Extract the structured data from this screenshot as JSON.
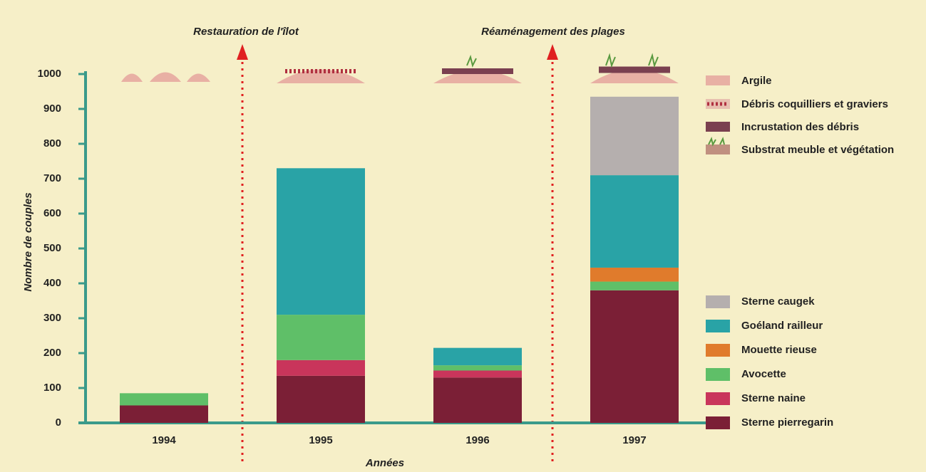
{
  "chart_data": {
    "type": "stacked_bar",
    "y_label": "Nombre de couples",
    "x_label": "Années",
    "annotations": [
      "Restauration de l'îlot",
      "Réaménagement des plages"
    ],
    "substrate_legend": [
      "Argile",
      "Débris coquilliers et graviers",
      "Incrustation des débris",
      "Substrat meuble et végétation"
    ],
    "categories": [
      "1994",
      "1995",
      "1996",
      "1997"
    ],
    "series": [
      {
        "name": "Sterne pierregarin",
        "color": "#7b1f36",
        "values": [
          50,
          135,
          130,
          380
        ]
      },
      {
        "name": "Sterne naine",
        "color": "#c9355b",
        "values": [
          0,
          45,
          20,
          0
        ]
      },
      {
        "name": "Avocette",
        "color": "#5fbf68",
        "values": [
          35,
          130,
          15,
          25
        ]
      },
      {
        "name": "Mouette rieuse",
        "color": "#e07b2c",
        "values": [
          0,
          0,
          0,
          40
        ]
      },
      {
        "name": "Goéland railleur",
        "color": "#29a3a6",
        "values": [
          0,
          420,
          50,
          265
        ]
      },
      {
        "name": "Sterne caugek",
        "color": "#b5afae",
        "values": [
          0,
          0,
          0,
          225
        ]
      }
    ],
    "ylim": [
      0,
      1000
    ],
    "yticks": [
      0,
      100,
      200,
      300,
      400,
      500,
      600,
      700,
      800,
      900,
      1000
    ]
  }
}
